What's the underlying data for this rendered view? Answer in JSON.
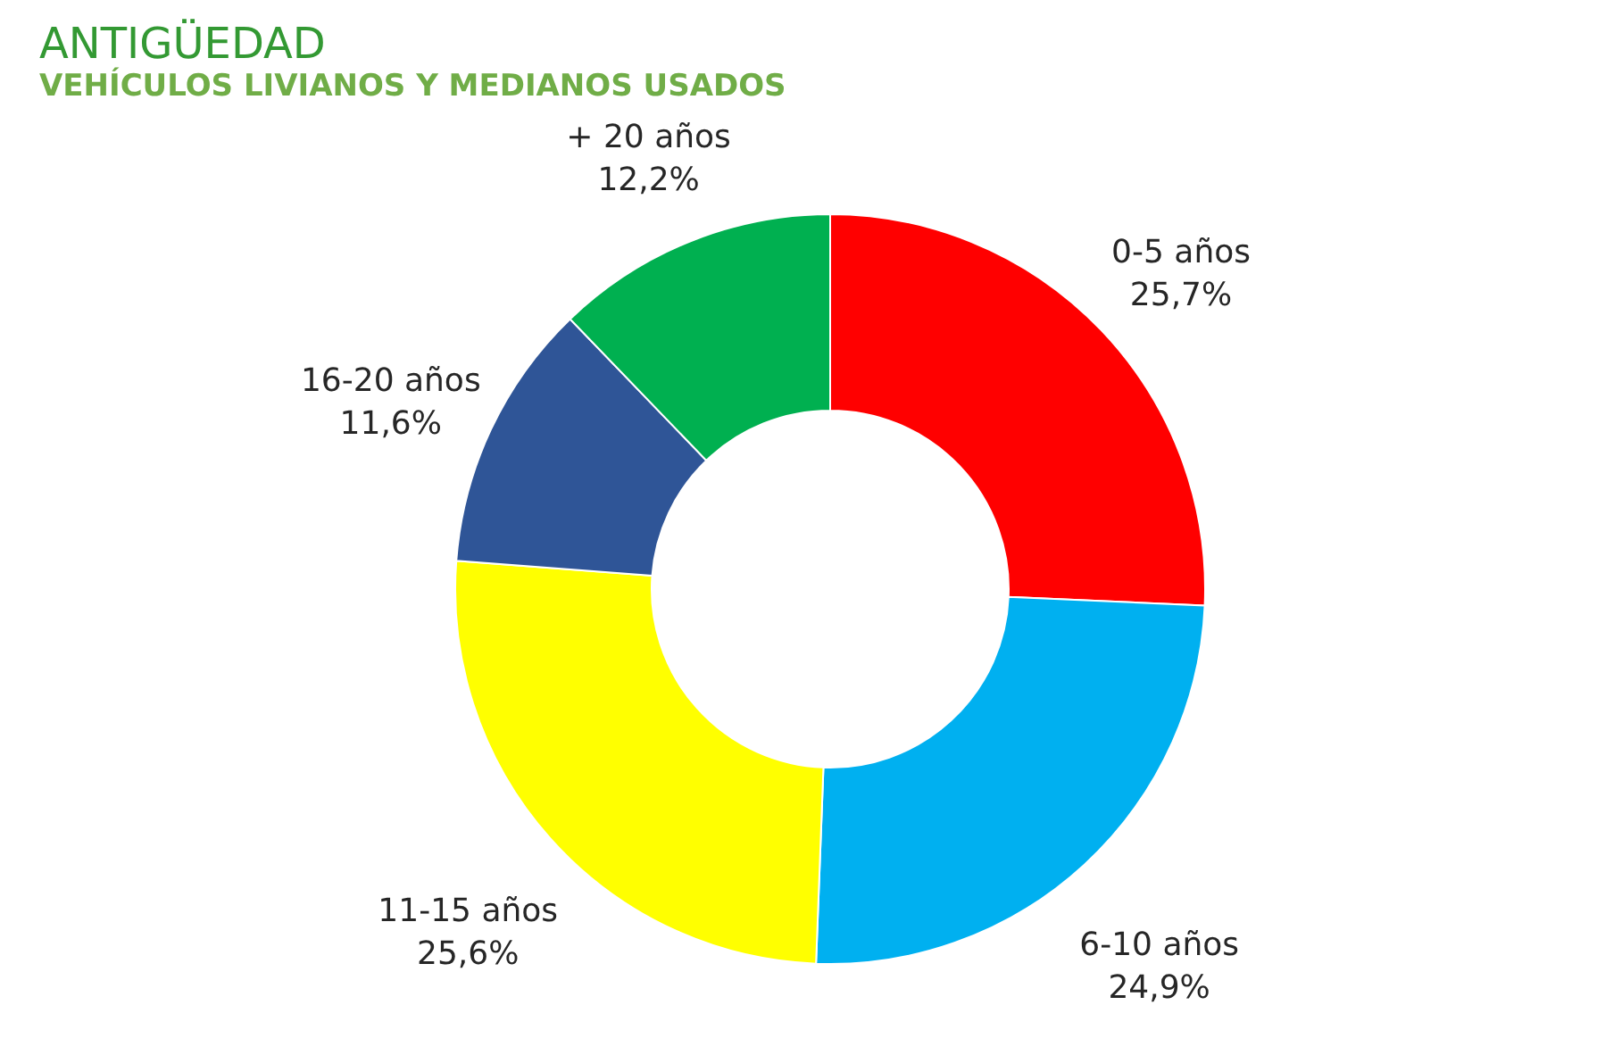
{
  "chart_data": {
    "type": "donut",
    "title": "ANTIGÜEDAD",
    "subtitle": "VEHÍCULOS LIVIANOS Y MEDIANOS USADOS",
    "categories": [
      "0-5 años",
      "6-10 años",
      "11-15 años",
      "16-20 años",
      "+ 20 años"
    ],
    "values": [
      25.7,
      24.9,
      25.6,
      11.6,
      12.2
    ],
    "colors": [
      "#ff0000",
      "#00b0f0",
      "#ffff00",
      "#2f5597",
      "#00b050"
    ],
    "value_labels": [
      "25,7%",
      "24,9%",
      "25,6%",
      "11,6%",
      "12,2%"
    ],
    "legend": false
  }
}
